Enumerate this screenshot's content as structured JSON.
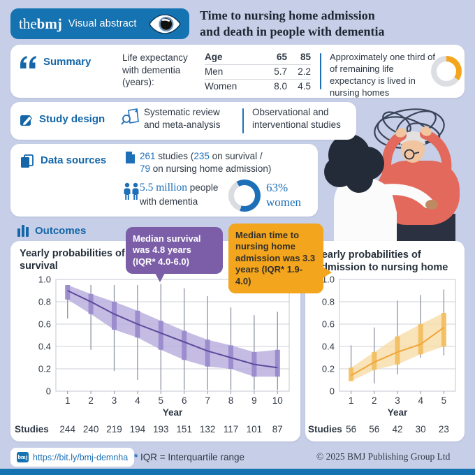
{
  "colors": {
    "page_bg": "#c6cfe7",
    "brand_blue": "#1673b1",
    "section_blue": "#1466a8",
    "accent_blue": "#1d70b8",
    "text_dark": "#2e3844",
    "callout_purple": "#7b5ea7",
    "callout_orange": "#f2a51d",
    "donut_gray": "#dcdee3"
  },
  "header": {
    "brand_prefix": "the",
    "brand_name": "bmj",
    "brand_label": "Visual abstract",
    "title_line1": "Time to nursing home admission",
    "title_line2": "and death in people with dementia"
  },
  "summary": {
    "label": "Summary",
    "intro": "Life expectancy with dementia (years):",
    "table": {
      "header": [
        "Age",
        "65",
        "85"
      ],
      "rows": [
        [
          "Men",
          "5.7",
          "2.2"
        ],
        [
          "Women",
          "8.0",
          "4.5"
        ]
      ]
    },
    "note": "Approximately one third of of remaining life expectancy is lived in nursing homes",
    "donut_fraction_label": "one third"
  },
  "study_design": {
    "label": "Study design",
    "item1": "Systematic review and meta-analysis",
    "item2": "Observational and interventional studies"
  },
  "data_sources": {
    "label": "Data sources",
    "studies_value1": "261",
    "studies_text1": " studies (",
    "studies_value2": "235",
    "studies_text2": " on survival /",
    "studies_value3": "79",
    "studies_text3": " on nursing home admission)",
    "people_value": "5.5 million",
    "people_text": " people",
    "people_line2": "with dementia",
    "women_percent": "63%",
    "women_label": "women"
  },
  "outcomes": {
    "label": "Outcomes",
    "callout_survival": "Median survival was 4.8 years (IQR* 4.0-6.0)",
    "callout_admission": "Median time to nursing home admission was 3.3 years (IQR* 1.9-4.0)"
  },
  "chart_data": [
    {
      "type": "line",
      "title": "Yearly probabilities of survival",
      "xlabel": "Year",
      "ylim": [
        0,
        1.0
      ],
      "yticks": [
        0,
        0.2,
        0.4,
        0.6,
        0.8,
        1.0
      ],
      "ytick_labels": [
        "0",
        "0.2",
        "0.4",
        "0.6",
        "0.8",
        "1.0"
      ],
      "x": [
        1,
        2,
        3,
        4,
        5,
        6,
        7,
        8,
        9,
        10
      ],
      "median": [
        0.9,
        0.8,
        0.69,
        0.6,
        0.52,
        0.44,
        0.36,
        0.3,
        0.24,
        0.21
      ],
      "iqr_low": [
        0.82,
        0.69,
        0.55,
        0.48,
        0.37,
        0.28,
        0.22,
        0.2,
        0.13,
        0.13
      ],
      "iqr_high": [
        0.95,
        0.87,
        0.8,
        0.72,
        0.63,
        0.54,
        0.46,
        0.41,
        0.35,
        0.37
      ],
      "range_low": [
        0.65,
        0.37,
        0.18,
        0.1,
        0.01,
        0.01,
        0.01,
        0.01,
        0.01,
        0.01
      ],
      "range_high": [
        0.95,
        0.95,
        0.95,
        0.95,
        0.96,
        0.92,
        0.85,
        0.75,
        0.68,
        0.71
      ],
      "studies_label": "Studies",
      "studies": [
        "244",
        "240",
        "219",
        "194",
        "193",
        "151",
        "132",
        "117",
        "101",
        "87"
      ],
      "line_color": "#5b4a9b",
      "band_color": "#b7abdc",
      "iqr_color": "#9a8bce",
      "grid": true,
      "legend": "none"
    },
    {
      "type": "line",
      "title": "Yearly probabilities of admission to nursing home",
      "xlabel": "Year",
      "ylim": [
        0,
        1.0
      ],
      "yticks": [
        0,
        0.2,
        0.4,
        0.6,
        0.8,
        1.0
      ],
      "ytick_labels": [
        "0",
        "0.2",
        "0.4",
        "0.6",
        "0.8",
        "1.0"
      ],
      "x": [
        1,
        2,
        3,
        4,
        5
      ],
      "median": [
        0.14,
        0.26,
        0.35,
        0.42,
        0.57
      ],
      "iqr_low": [
        0.09,
        0.19,
        0.24,
        0.33,
        0.4
      ],
      "iqr_high": [
        0.21,
        0.35,
        0.49,
        0.6,
        0.7
      ],
      "range_low": [
        0.09,
        0.07,
        0.15,
        0.3,
        0.32
      ],
      "range_high": [
        0.41,
        0.57,
        0.81,
        0.86,
        0.91
      ],
      "studies_label": "Studies",
      "studies": [
        "56",
        "56",
        "42",
        "30",
        "23"
      ],
      "line_color": "#f0a73a",
      "band_color": "#f8dca6",
      "iqr_color": "#f4bf62",
      "grid": true,
      "legend": "none"
    }
  ],
  "footer": {
    "link": "https://bit.ly/bmj-demnha",
    "bmj_mini": "bmj",
    "iqr_star": "*",
    "iqr_note": " IQR = Interquartile range",
    "copyright": "© 2025 BMJ Publishing Group Ltd"
  }
}
